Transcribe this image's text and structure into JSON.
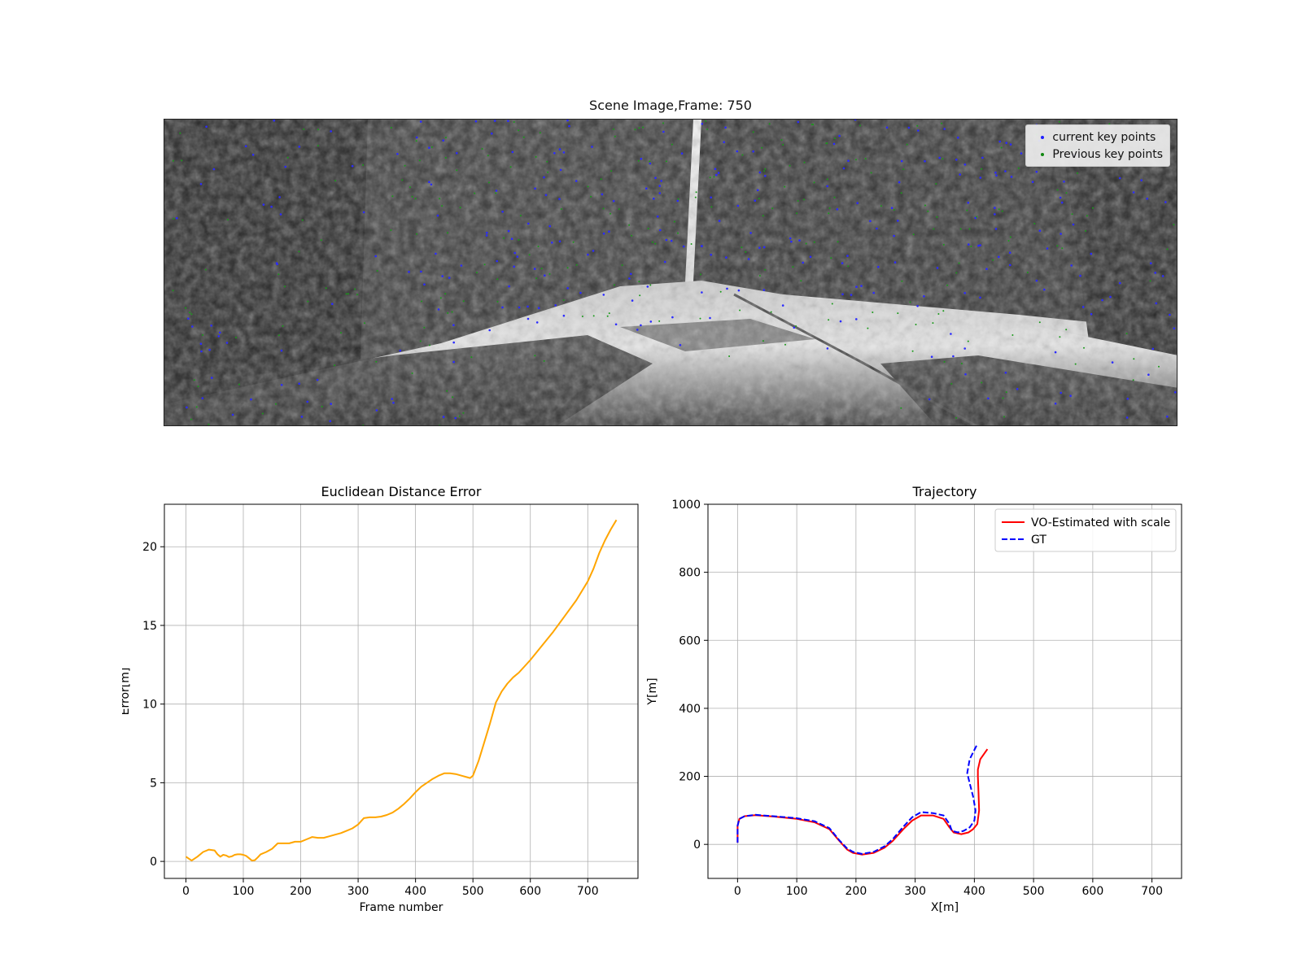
{
  "scene": {
    "title": "Scene Image,Frame: 750",
    "legend": [
      {
        "label": "current key points",
        "color": "#1f1fff"
      },
      {
        "label": "Previous key points",
        "color": "#118811"
      }
    ]
  },
  "chart_data": [
    {
      "type": "line",
      "title": "Euclidean Distance Error",
      "xlabel": "Frame number",
      "ylabel": "Error[m]",
      "xlim": [
        -37.5,
        787.5
      ],
      "ylim": [
        -1.08,
        22.7
      ],
      "xticks": [
        0,
        100,
        200,
        300,
        400,
        500,
        600,
        700
      ],
      "yticks": [
        0,
        5,
        10,
        15,
        20
      ],
      "grid": true,
      "series": [
        {
          "color": "#ffa500",
          "x": [
            0,
            10,
            20,
            30,
            40,
            50,
            55,
            60,
            65,
            70,
            75,
            80,
            85,
            90,
            95,
            100,
            105,
            110,
            115,
            120,
            125,
            130,
            140,
            150,
            160,
            170,
            180,
            190,
            200,
            210,
            220,
            230,
            240,
            250,
            260,
            270,
            280,
            290,
            300,
            310,
            320,
            330,
            340,
            350,
            360,
            370,
            380,
            390,
            400,
            410,
            420,
            430,
            440,
            450,
            460,
            470,
            480,
            490,
            495,
            500,
            510,
            520,
            530,
            540,
            550,
            560,
            570,
            580,
            600,
            620,
            640,
            660,
            680,
            700,
            710,
            720,
            730,
            740,
            750
          ],
          "y": [
            0.3,
            0.05,
            0.3,
            0.6,
            0.75,
            0.7,
            0.45,
            0.3,
            0.42,
            0.38,
            0.28,
            0.32,
            0.42,
            0.45,
            0.45,
            0.42,
            0.35,
            0.2,
            0.05,
            0.08,
            0.25,
            0.45,
            0.6,
            0.8,
            1.15,
            1.15,
            1.15,
            1.25,
            1.25,
            1.4,
            1.55,
            1.5,
            1.5,
            1.6,
            1.7,
            1.8,
            1.95,
            2.1,
            2.35,
            2.75,
            2.8,
            2.8,
            2.85,
            2.95,
            3.1,
            3.35,
            3.65,
            4.0,
            4.4,
            4.75,
            5.0,
            5.25,
            5.45,
            5.6,
            5.6,
            5.55,
            5.45,
            5.35,
            5.3,
            5.45,
            6.4,
            7.6,
            8.8,
            10.1,
            10.8,
            11.3,
            11.7,
            12.0,
            12.8,
            13.7,
            14.6,
            15.6,
            16.6,
            17.8,
            18.6,
            19.6,
            20.4,
            21.1,
            21.7
          ]
        }
      ]
    },
    {
      "type": "line",
      "title": "Trajectory",
      "xlabel": "X[m]",
      "ylabel": "Y[m]",
      "xlim": [
        -50,
        750
      ],
      "ylim": [
        -100,
        1000
      ],
      "xticks": [
        0,
        100,
        200,
        300,
        400,
        500,
        600,
        700
      ],
      "yticks": [
        0,
        200,
        400,
        600,
        800,
        1000
      ],
      "grid": true,
      "legend_position": "top-right",
      "series": [
        {
          "name": "VO-Estimated with scale",
          "color": "#ff0000",
          "dash": "solid",
          "x": [
            0,
            0,
            3,
            12,
            30,
            60,
            100,
            130,
            155,
            172,
            185,
            195,
            210,
            230,
            248,
            262,
            280,
            295,
            310,
            330,
            348,
            358,
            365,
            378,
            390,
            398,
            405,
            408,
            407,
            406,
            406,
            410,
            422
          ],
          "y": [
            5,
            55,
            75,
            83,
            86,
            82,
            75,
            65,
            45,
            10,
            -15,
            -25,
            -30,
            -25,
            -10,
            10,
            45,
            70,
            85,
            85,
            75,
            50,
            35,
            30,
            35,
            45,
            60,
            100,
            150,
            200,
            220,
            250,
            280
          ]
        },
        {
          "name": "GT",
          "color": "#0000ff",
          "dash": "dashed",
          "x": [
            0,
            0,
            3,
            12,
            30,
            60,
            100,
            130,
            155,
            172,
            185,
            195,
            210,
            230,
            248,
            262,
            280,
            295,
            310,
            330,
            348,
            358,
            362,
            372,
            382,
            392,
            400,
            402,
            398,
            392,
            388,
            392,
            405
          ],
          "y": [
            5,
            55,
            75,
            83,
            87,
            83,
            77,
            68,
            48,
            12,
            -12,
            -22,
            -28,
            -22,
            -6,
            15,
            52,
            80,
            95,
            92,
            85,
            60,
            40,
            35,
            40,
            50,
            70,
            100,
            140,
            180,
            210,
            250,
            295
          ]
        }
      ]
    }
  ]
}
